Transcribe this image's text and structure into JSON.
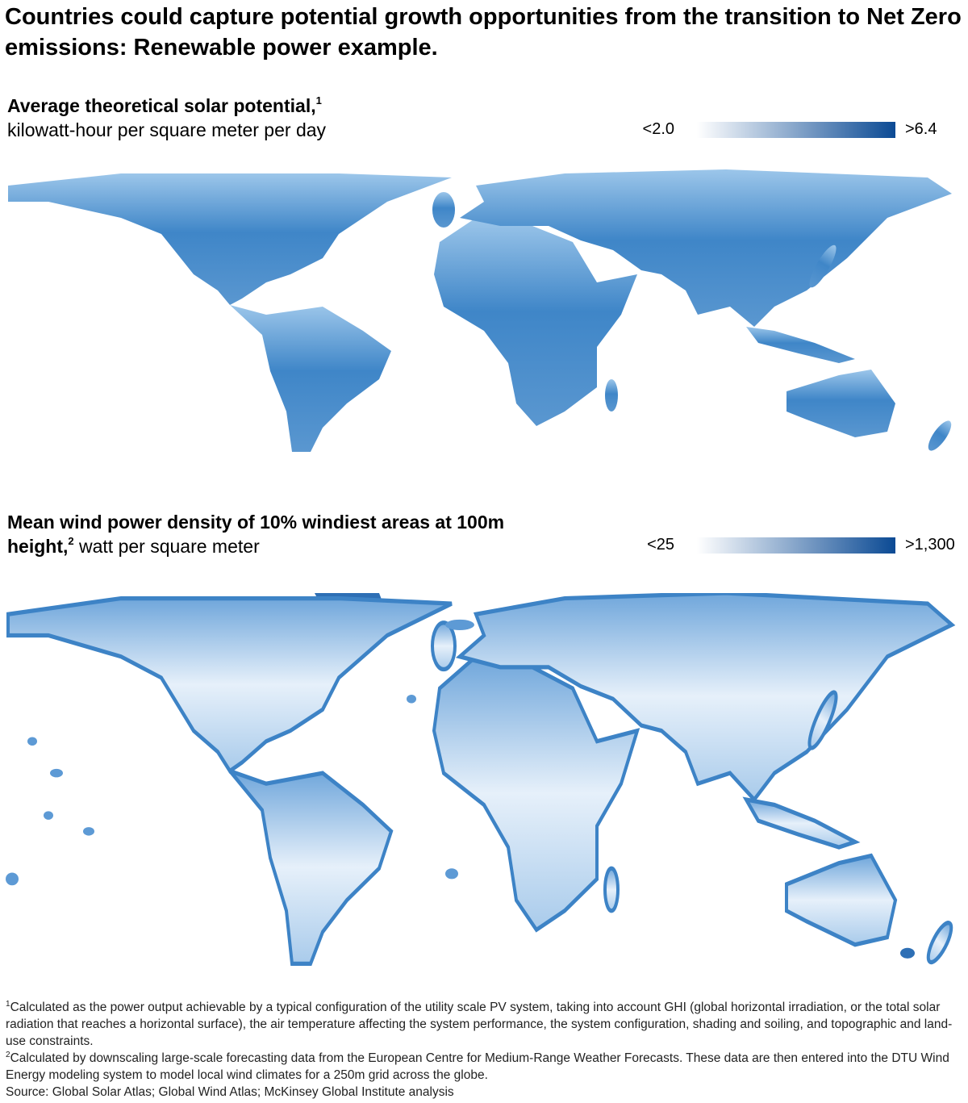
{
  "title": "Countries could capture potential growth opportunities from the transition to Net Zero emissions: Renewable power example.",
  "maps": [
    {
      "title": "Average theoretical solar potential,",
      "note_mark": "1",
      "subtitle": "kilowatt-hour per square meter per day",
      "legend": {
        "min_label": "<2.0",
        "max_label": ">6.4"
      }
    },
    {
      "title": "Mean wind power density of 10% windiest areas at 100m height,",
      "note_mark": "2",
      "subtitle": "watt per square meter",
      "legend": {
        "min_label": "<25",
        "max_label": ">1,300"
      }
    }
  ],
  "footnotes": [
    {
      "mark": "1",
      "text": "Calculated as the power output achievable by a typical configuration of the utility scale PV system, taking into account GHI (global horizontal irradiation, or the total solar radiation that reaches a horizontal surface), the air temperature affecting the system performance, the system configuration, shading and soiling, and topographic and land-use constraints."
    },
    {
      "mark": "2",
      "text": "Calculated by downscaling large-scale forecasting data from the European Centre for Medium-Range Weather Forecasts. These data are then entered into the DTU Wind Energy modeling system to model local wind climates for a 250m grid across the globe."
    }
  ],
  "source": "Source: Global Solar Atlas; Global Wind Atlas; McKinsey Global Institute analysis"
}
